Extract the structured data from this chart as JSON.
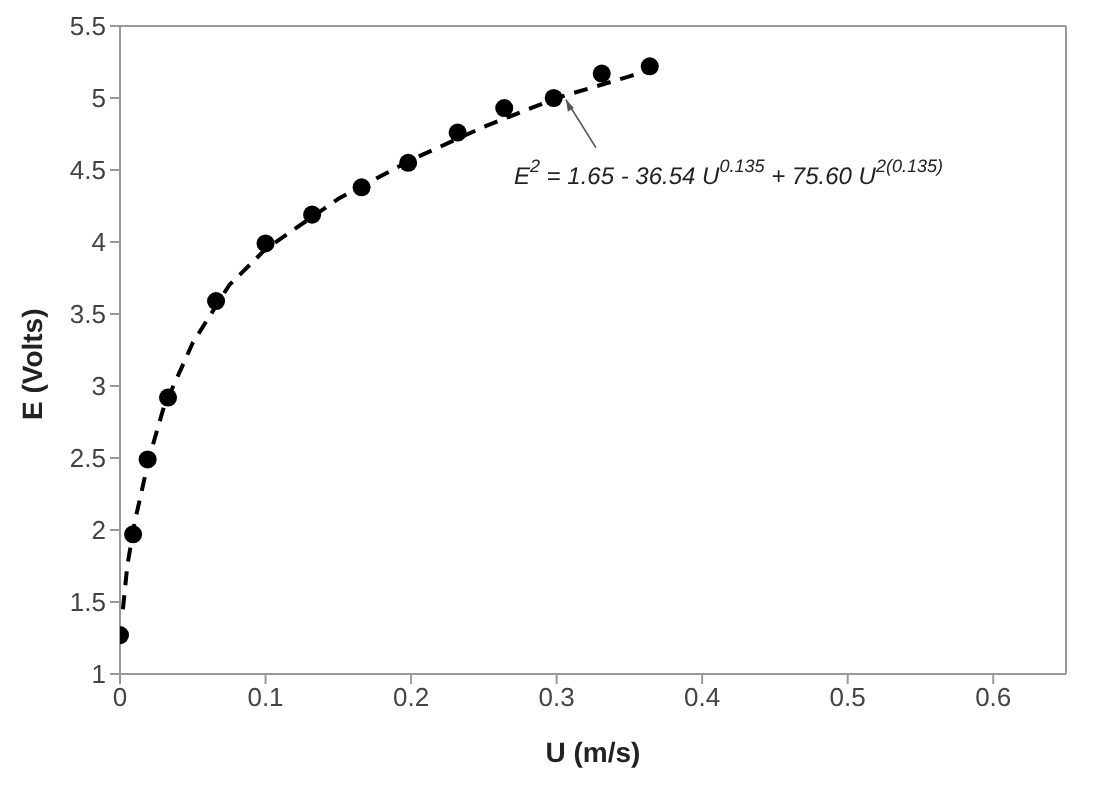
{
  "chart_data": {
    "type": "scatter",
    "xlabel": "U (m/s)",
    "ylabel": "E (Volts)",
    "x": [
      0,
      0.009,
      0.019,
      0.033,
      0.066,
      0.1,
      0.132,
      0.166,
      0.198,
      0.232,
      0.264,
      0.298,
      0.331,
      0.364
    ],
    "series": [
      {
        "color": "#000000",
        "marker": "circle",
        "values": [
          1.27,
          1.97,
          2.49,
          2.92,
          3.59,
          3.99,
          4.19,
          4.38,
          4.55,
          4.76,
          4.93,
          5.0,
          5.17,
          5.22
        ]
      },
      {
        "type": "line",
        "color": "#000000",
        "marker": "none",
        "line_style": "dashed",
        "x": [
          0.002,
          0.005,
          0.01,
          0.02,
          0.03,
          0.05,
          0.075,
          0.1,
          0.15,
          0.2,
          0.25,
          0.3,
          0.35,
          0.365
        ],
        "values": [
          1.45,
          1.75,
          2.05,
          2.5,
          2.85,
          3.3,
          3.7,
          3.95,
          4.3,
          4.57,
          4.8,
          5.0,
          5.15,
          5.2
        ]
      }
    ],
    "xlim": [
      0,
      0.65
    ],
    "xticks": [
      0,
      0.1,
      0.2,
      0.3,
      0.4,
      0.5,
      0.6
    ],
    "ylim": [
      1,
      5.5
    ],
    "yticks": [
      1,
      1.5,
      2,
      2.5,
      3,
      3.5,
      4,
      4.5,
      5,
      5.5
    ],
    "annotations": [
      {
        "text": "E$^{2}$ = 1.65 - 36.54 U$^{0.135}$ + 75.60 U$^{2(0.135)}$",
        "x": 0.305,
        "y": 5.03
      }
    ]
  }
}
